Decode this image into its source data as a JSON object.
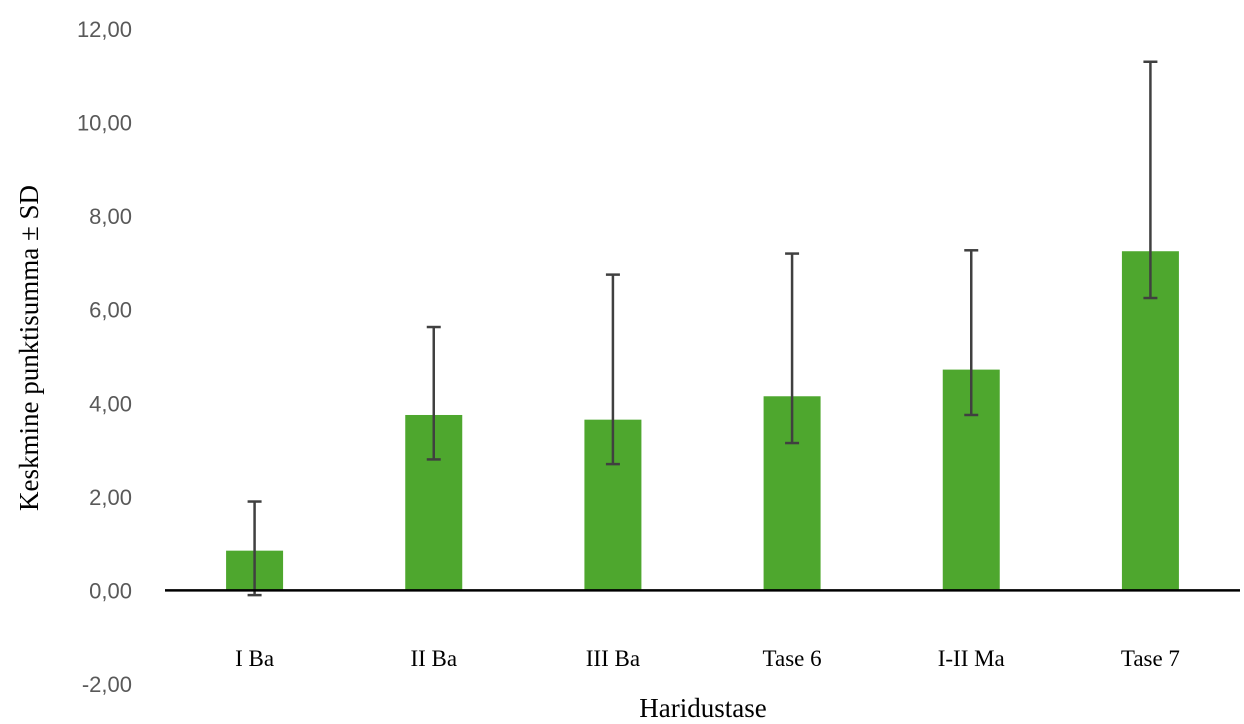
{
  "chart_data": {
    "type": "bar",
    "title": "",
    "xlabel": "Haridustase",
    "ylabel": "Keskmine punktisumma ± SD",
    "categories": [
      "I Ba",
      "II Ba",
      "III Ba",
      "Tase 6",
      "I-II Ma",
      "Tase 7"
    ],
    "series": [
      {
        "values": [
          0.85,
          3.75,
          3.65,
          4.15,
          4.72,
          7.25
        ],
        "error_lower": [
          0.95,
          0.95,
          0.95,
          1.0,
          0.97,
          1.0
        ],
        "error_upper": [
          1.05,
          1.88,
          3.1,
          3.05,
          2.55,
          4.05
        ]
      }
    ],
    "ylim": [
      -2,
      12
    ],
    "yticks": [
      -2,
      0,
      2,
      4,
      6,
      8,
      10,
      12
    ],
    "ytick_labels": [
      "-2,00",
      "0,00",
      "2,00",
      "4,00",
      "6,00",
      "8,00",
      "10,00",
      "12,00"
    ],
    "grid": false,
    "legend": "none",
    "colors": {
      "bar": "#4EA72E",
      "error_bar": "#404040",
      "axis": "#000000"
    }
  }
}
